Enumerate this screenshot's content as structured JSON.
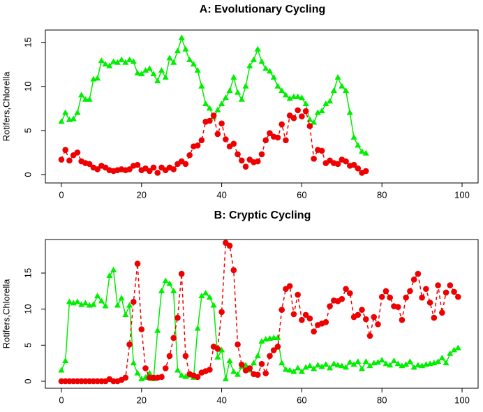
{
  "chart_data": [
    {
      "type": "line",
      "title": "A: Evolutionary Cycling",
      "ylabel": "Rotifers,Chlorella",
      "x": [
        0,
        1,
        2,
        3,
        4,
        5,
        6,
        7,
        8,
        9,
        10,
        11,
        12,
        13,
        14,
        15,
        16,
        17,
        18,
        19,
        20,
        21,
        22,
        23,
        24,
        25,
        26,
        27,
        28,
        29,
        30,
        31,
        32,
        33,
        34,
        35,
        36,
        37,
        38,
        39,
        40,
        41,
        42,
        43,
        44,
        45,
        46,
        47,
        48,
        49,
        50,
        51,
        52,
        53,
        54,
        55,
        56,
        57,
        58,
        59,
        60,
        61,
        62,
        63,
        64,
        65,
        66,
        67,
        68,
        69,
        70,
        71,
        72,
        73,
        74,
        75,
        76
      ],
      "series": [
        {
          "color": "#00ee00",
          "marker": "triangle",
          "dashed": false,
          "values": [
            6,
            7,
            6.2,
            6.3,
            7,
            9,
            8.5,
            8.5,
            10.8,
            10.9,
            12.9,
            12.5,
            12.3,
            12.8,
            12.7,
            13,
            12.7,
            13,
            12.8,
            11.5,
            11.4,
            11.8,
            12,
            11.4,
            10.6,
            11.8,
            11,
            13.2,
            12.7,
            14,
            15.5,
            14.2,
            13,
            12.5,
            11.8,
            10,
            8,
            7.5,
            6.5,
            7.3,
            8,
            8.7,
            9.5,
            11,
            9.3,
            8.5,
            10,
            12.3,
            13,
            14.2,
            12.8,
            12,
            11.7,
            11,
            10,
            9.5,
            9,
            8.6,
            8.8,
            8.8,
            8.7,
            8,
            6.2,
            5.9,
            7,
            7.2,
            8,
            8.3,
            9.5,
            11,
            10,
            9.5,
            7,
            4.2,
            3.3,
            2.6,
            2.4
          ]
        },
        {
          "color": "#ee0000",
          "marker": "circle",
          "dashed": true,
          "values": [
            1.7,
            2.8,
            1.6,
            2.2,
            2.5,
            1.5,
            1.3,
            1.2,
            0.8,
            0.6,
            1,
            0.8,
            0.5,
            0.4,
            0.5,
            0.6,
            0.5,
            0.6,
            1,
            1.1,
            0.5,
            0.7,
            0.4,
            0.8,
            0.2,
            0.8,
            0.5,
            0.8,
            0.6,
            1.2,
            1.5,
            1.2,
            2.2,
            3.2,
            3.3,
            3.9,
            6,
            6.1,
            6.7,
            4.6,
            5.8,
            4,
            3.2,
            3.5,
            2.3,
            1.6,
            0.9,
            1.7,
            1.4,
            1.5,
            2.3,
            3.9,
            4.7,
            4.3,
            4.2,
            5.7,
            3.9,
            6.7,
            6.4,
            7.3,
            6.6,
            7.2,
            5.5,
            1.8,
            2.8,
            2.7,
            1.3,
            1.6,
            1.3,
            1.2,
            1.7,
            1.5,
            1,
            1.1,
            0.7,
            0.2,
            0.4
          ]
        }
      ],
      "xlim": [
        -4,
        104
      ],
      "ylim": [
        -0.95,
        16.4
      ],
      "xticks": [
        0,
        20,
        40,
        60,
        80,
        100
      ],
      "yticks": [
        0,
        5,
        10,
        15
      ]
    },
    {
      "type": "line",
      "title": "B: Cryptic Cycling",
      "ylabel": "Rotifers,Chlorella",
      "x": [
        0,
        1,
        2,
        3,
        4,
        5,
        6,
        7,
        8,
        9,
        10,
        11,
        12,
        13,
        14,
        15,
        16,
        17,
        18,
        19,
        20,
        21,
        22,
        23,
        24,
        25,
        26,
        27,
        28,
        29,
        30,
        31,
        32,
        33,
        34,
        35,
        36,
        37,
        38,
        39,
        40,
        41,
        42,
        43,
        44,
        45,
        46,
        47,
        48,
        49,
        50,
        51,
        52,
        53,
        54,
        55,
        56,
        57,
        58,
        59,
        60,
        61,
        62,
        63,
        64,
        65,
        66,
        67,
        68,
        69,
        70,
        71,
        72,
        73,
        74,
        75,
        76,
        77,
        78,
        79,
        80,
        81,
        82,
        83,
        84,
        85,
        86,
        87,
        88,
        89,
        90,
        91,
        92,
        93,
        94,
        95,
        96,
        97,
        98,
        99
      ],
      "series": [
        {
          "color": "#00ee00",
          "marker": "triangle",
          "dashed": false,
          "values": [
            1.5,
            2.8,
            11,
            10.8,
            11,
            10.6,
            10.8,
            10.5,
            10.6,
            11.8,
            11.1,
            10.4,
            14.6,
            15.4,
            10.5,
            11.5,
            9.2,
            10.5,
            2.5,
            1.1,
            0.3,
            0.5,
            1.1,
            0.3,
            7,
            12.5,
            13.9,
            13.5,
            12.5,
            1.5,
            0.8,
            0.6,
            0.8,
            0.5,
            7.3,
            11.8,
            12.2,
            11.6,
            10.5,
            3.3,
            4.3,
            0.3,
            2.8,
            1.3,
            0.9,
            2,
            2.2,
            1.5,
            2.5,
            3.5,
            5.5,
            5.8,
            5.9,
            6,
            6,
            2.5,
            1.6,
            1.5,
            1.3,
            1.8,
            1.3,
            1.9,
            2.1,
            1.7,
            2.2,
            2,
            2.3,
            1.8,
            2.4,
            2.2,
            2.1,
            1.9,
            2.6,
            2.3,
            2.7,
            1.7,
            2.7,
            2.1,
            2.5,
            2.6,
            2.9,
            2.4,
            2.2,
            2.8,
            2.4,
            2.1,
            2.3,
            2.7,
            1.9,
            2.2,
            2.1,
            2.3,
            2.4,
            2.5,
            2.7,
            3.2,
            2.5,
            3.8,
            4.3,
            4.6
          ]
        },
        {
          "color": "#ee0000",
          "marker": "circle",
          "dashed": true,
          "values": [
            0,
            0,
            0,
            0,
            0,
            0,
            0,
            0,
            0,
            0,
            0,
            0,
            0.3,
            0,
            0,
            0.2,
            0.5,
            5.1,
            11,
            16.3,
            7.2,
            1.8,
            0.5,
            0.5,
            0.5,
            0.6,
            1.8,
            3.5,
            6,
            8.8,
            14.9,
            3.5,
            1,
            0.8,
            0.6,
            1.2,
            1.4,
            1.6,
            4.8,
            4.5,
            9.6,
            19.2,
            18.8,
            15.4,
            5.1,
            2.3,
            1.5,
            1.8,
            1,
            0.9,
            2.4,
            1.1,
            3.5,
            4.3,
            4.8,
            9.9,
            12.8,
            13.2,
            9.3,
            12,
            8.5,
            9.2,
            8.7,
            6.9,
            7.8,
            8,
            8.2,
            10.4,
            11.2,
            11.1,
            11.4,
            12.8,
            12.2,
            8.9,
            9.2,
            9.9,
            8.6,
            6.3,
            8.9,
            7.9,
            11.7,
            12.5,
            11.6,
            10.4,
            10.3,
            8.5,
            11.6,
            12.5,
            14.1,
            14.9,
            11.6,
            12.8,
            10.9,
            8.8,
            13.3,
            9.5,
            12.3,
            13.3,
            12.4,
            11.7
          ]
        }
      ],
      "xlim": [
        -4,
        104
      ],
      "ylim": [
        -0.97,
        19.65
      ],
      "xticks": [
        0,
        20,
        40,
        60,
        80,
        100
      ],
      "yticks": [
        0,
        5,
        10,
        15
      ]
    }
  ]
}
